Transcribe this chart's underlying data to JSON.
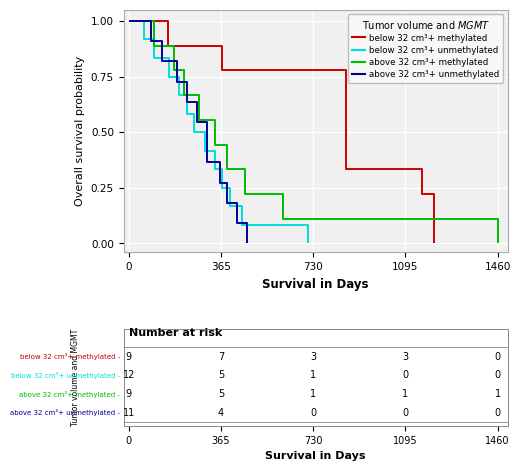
{
  "ylabel": "Overall survival probability",
  "xlabel": "Survival in Days",
  "xlabel_table": "Survival in Days",
  "yticks": [
    0.0,
    0.25,
    0.5,
    0.75,
    1.0
  ],
  "xticks": [
    0,
    365,
    730,
    1095,
    1460
  ],
  "xlim": [
    -20,
    1500
  ],
  "ylim": [
    -0.04,
    1.05
  ],
  "groups": [
    {
      "label": "below 32 cm³+ methylated",
      "color": "#cc0000",
      "times": [
        0,
        130,
        155,
        210,
        290,
        370,
        410,
        510,
        590,
        710,
        740,
        860,
        1010,
        1100,
        1160,
        1210
      ],
      "surv": [
        1.0,
        1.0,
        0.889,
        0.889,
        0.889,
        0.778,
        0.778,
        0.778,
        0.778,
        0.778,
        0.778,
        0.333,
        0.333,
        0.333,
        0.222,
        0.0
      ]
    },
    {
      "label": "below 32 cm³+ unmethylated",
      "color": "#00dddd",
      "times": [
        0,
        60,
        100,
        130,
        160,
        200,
        230,
        260,
        300,
        340,
        370,
        400,
        450,
        510,
        610,
        660,
        710
      ],
      "surv": [
        1.0,
        0.917,
        0.833,
        0.833,
        0.75,
        0.667,
        0.583,
        0.5,
        0.417,
        0.333,
        0.25,
        0.167,
        0.083,
        0.083,
        0.083,
        0.083,
        0.0
      ]
    },
    {
      "label": "above 32 cm³+ methylated",
      "color": "#00bb00",
      "times": [
        0,
        100,
        180,
        220,
        280,
        340,
        390,
        460,
        510,
        560,
        610,
        690,
        760,
        910,
        1100,
        1210,
        1460
      ],
      "surv": [
        1.0,
        0.889,
        0.778,
        0.667,
        0.556,
        0.444,
        0.333,
        0.222,
        0.222,
        0.222,
        0.111,
        0.111,
        0.111,
        0.111,
        0.111,
        0.111,
        0.0
      ]
    },
    {
      "label": "above 32 cm³+ unmethylated",
      "color": "#000099",
      "times": [
        0,
        90,
        130,
        190,
        230,
        270,
        310,
        360,
        390,
        430,
        470
      ],
      "surv": [
        1.0,
        0.909,
        0.818,
        0.727,
        0.636,
        0.545,
        0.364,
        0.273,
        0.182,
        0.091,
        0.0
      ]
    }
  ],
  "risk_table": {
    "times": [
      0,
      365,
      730,
      1095,
      1460
    ],
    "rows": [
      {
        "label": "below 32 cm³+ methylated",
        "color": "#cc0000",
        "values": [
          9,
          7,
          3,
          3,
          0
        ]
      },
      {
        "label": "below 32 cm³+ unmethylated",
        "color": "#00dddd",
        "values": [
          12,
          5,
          1,
          0,
          0
        ]
      },
      {
        "label": "above 32 cm³+ methylated",
        "color": "#00bb00",
        "values": [
          9,
          5,
          1,
          1,
          1
        ]
      },
      {
        "label": "above 32 cm³+ unmethylated",
        "color": "#000099",
        "values": [
          11,
          4,
          0,
          0,
          0
        ]
      }
    ]
  },
  "background_color": "#f0f0f0",
  "grid_color": "#ffffff",
  "table_ylabel": "Tumor volume and MGMT"
}
